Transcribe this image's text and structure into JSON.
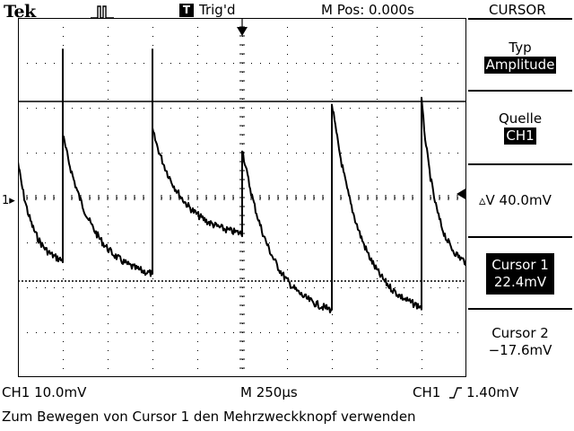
{
  "header": {
    "brand": "Tek",
    "acquire_icon": "run-pulse-icon",
    "trigger_badge": "T",
    "trigger_status": "Trig'd",
    "main_position": "M Pos: 0.000s",
    "menu_title": "CURSOR"
  },
  "side_menu": {
    "type_label": "Typ",
    "type_value": "Amplitude",
    "source_label": "Quelle",
    "source_value": "CH1",
    "delta_label": "▵V 40.0mV",
    "cursor1_label": "Cursor 1",
    "cursor1_value": "22.4mV",
    "cursor2_label": "Cursor 2",
    "cursor2_value": "−17.6mV"
  },
  "status_bar": {
    "ch1_scale": "CH1  10.0mV",
    "timebase": "M 250µs",
    "trigger_source": "CH1",
    "trigger_slope_icon": "rising-edge-icon",
    "trigger_level": "1.40mV"
  },
  "screen": {
    "ch1_marker": "1",
    "trigger_position_icon": "trigger-position-arrow-icon",
    "trigger_level_icon": "trigger-level-arrow-icon"
  },
  "message": "Zum Bewegen von Cursor 1 den Mehrzweckknopf verwenden"
}
